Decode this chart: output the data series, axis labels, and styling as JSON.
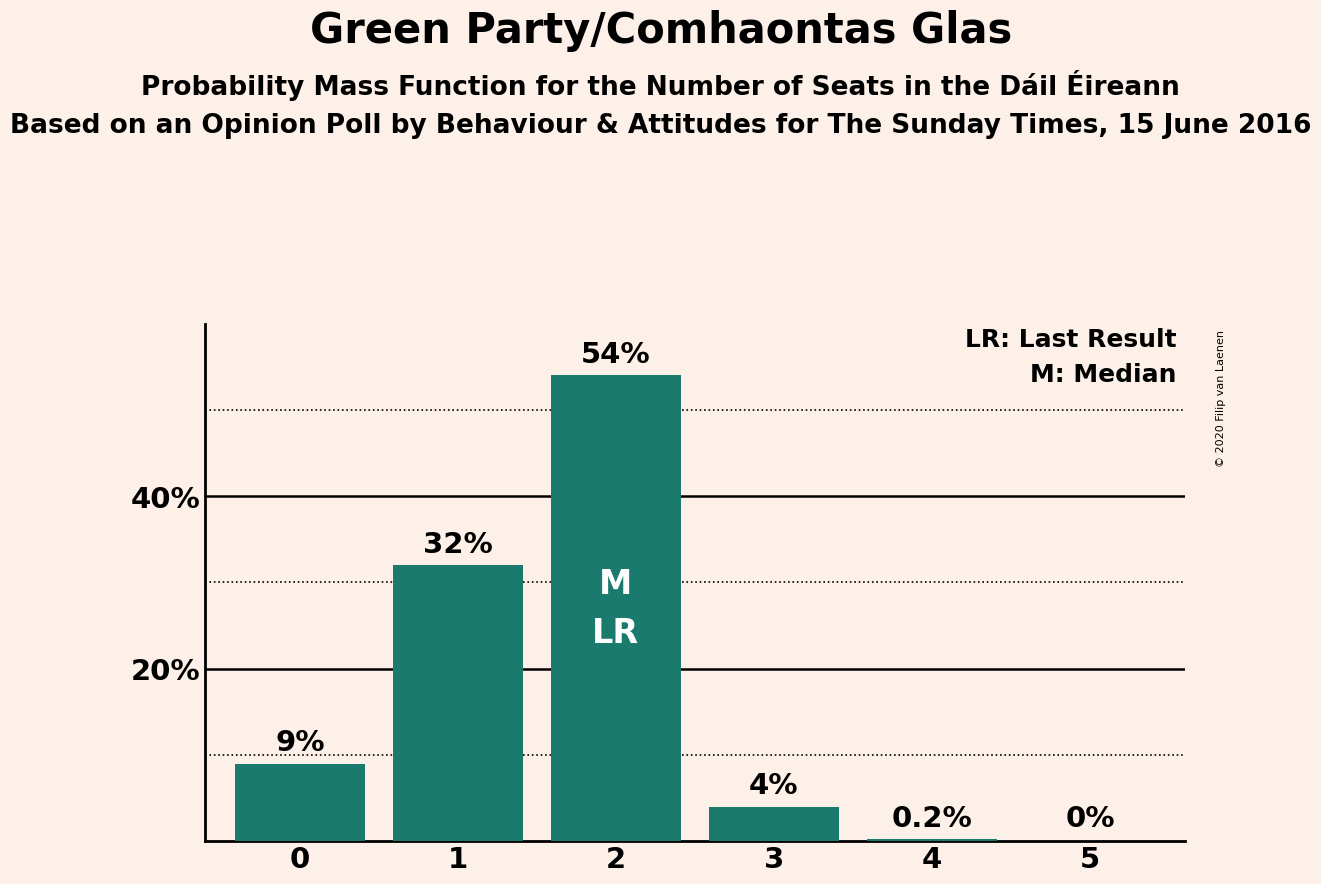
{
  "title": "Green Party/Comhaontas Glas",
  "subtitle1": "Probability Mass Function for the Number of Seats in the Dáil Éireann",
  "subtitle2": "Based on an Opinion Poll by Behaviour & Attitudes for The Sunday Times, 15 June 2016",
  "copyright": "© 2020 Filip van Laenen",
  "categories": [
    0,
    1,
    2,
    3,
    4,
    5
  ],
  "values": [
    9,
    32,
    54,
    4,
    0.2,
    0
  ],
  "bar_color": "#1a7a6e",
  "background_color": "#fdf0e8",
  "yticks": [
    20,
    40
  ],
  "dotted_lines": [
    10,
    30,
    50
  ],
  "legend_lr": "LR: Last Result",
  "legend_m": "M: Median",
  "median_seat": 2,
  "last_result_seat": 2,
  "title_fontsize": 30,
  "subtitle1_fontsize": 19,
  "subtitle2_fontsize": 19,
  "bar_label_fontsize": 21,
  "axis_label_fontsize": 21,
  "legend_fontsize": 18,
  "inside_label_fontsize": 24,
  "ylim_max": 60,
  "bar_width": 0.82
}
